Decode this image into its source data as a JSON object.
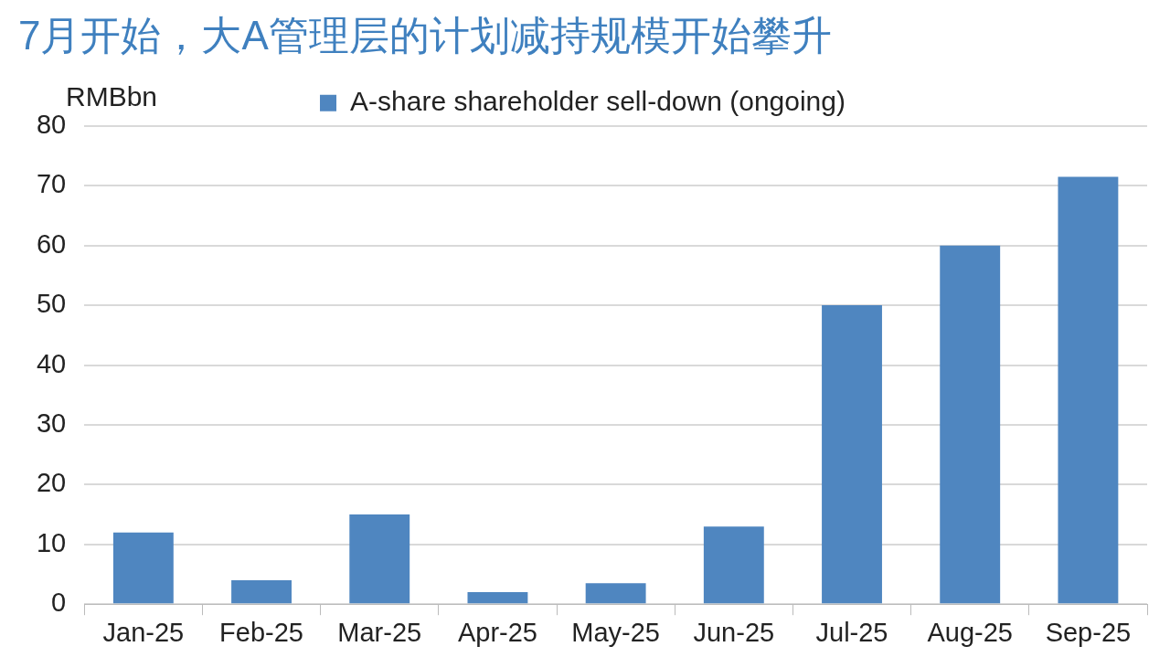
{
  "chart_data": {
    "type": "bar",
    "title": "7月开始，大A管理层的计划减持规模开始攀升",
    "ylabel": "RMBbn",
    "categories": [
      "Jan-25",
      "Feb-25",
      "Mar-25",
      "Apr-25",
      "May-25",
      "Jun-25",
      "Jul-25",
      "Aug-25",
      "Sep-25"
    ],
    "series": [
      {
        "name": "A-share shareholder sell-down (ongoing)",
        "color": "#4f86c0",
        "values": [
          12,
          4,
          15,
          2,
          3.5,
          13,
          50,
          60,
          71.5
        ]
      }
    ],
    "ylim": [
      0,
      80
    ],
    "yticks": [
      0,
      10,
      20,
      30,
      40,
      50,
      60,
      70,
      80
    ],
    "grid": "y",
    "legend": "top"
  }
}
